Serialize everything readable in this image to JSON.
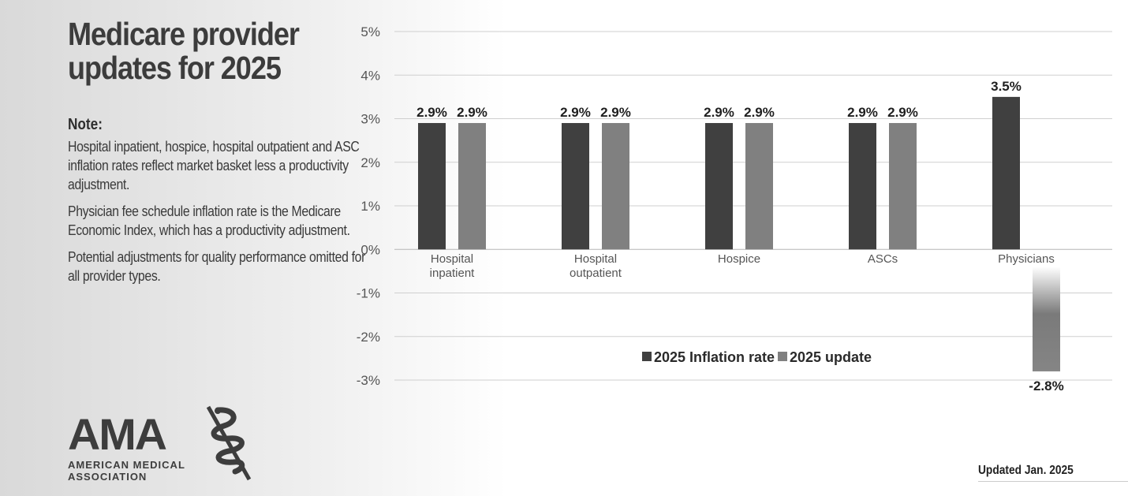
{
  "title": "Medicare provider updates for 2025",
  "note": {
    "heading": "Note:",
    "paragraphs": [
      "Hospital inpatient, hospice, hospital outpatient and ASC inflation rates reflect market basket less a productivity adjustment.",
      "Physician fee schedule inflation rate is the Medicare Economic Index, which has a productivity adjustment.",
      "Potential adjustments for quality performance omitted for all provider types."
    ]
  },
  "logo": {
    "mark": "AMA",
    "line1": "AMERICAN MEDICAL",
    "line2": "ASSOCIATION"
  },
  "updated": "Updated Jan. 2025",
  "chart_data": {
    "type": "bar",
    "title": "",
    "xlabel": "",
    "ylabel": "",
    "ylim": [
      -3,
      5
    ],
    "yticks": [
      5,
      4,
      3,
      2,
      1,
      0,
      -1,
      -2,
      -3
    ],
    "ytick_labels": [
      "5%",
      "4%",
      "3%",
      "2%",
      "1%",
      "0%",
      "-1%",
      "-2%",
      "-3%"
    ],
    "grid": true,
    "legend_position": "bottom-center",
    "categories": [
      [
        "Hospital",
        "inpatient"
      ],
      [
        "Hospital",
        "outpatient"
      ],
      [
        "Hospice"
      ],
      [
        "ASCs"
      ],
      [
        "Physicians"
      ]
    ],
    "series": [
      {
        "name": "2025 Inflation rate",
        "color": "#404040",
        "values": [
          2.9,
          2.9,
          2.9,
          2.9,
          3.5
        ],
        "labels": [
          "2.9%",
          "2.9%",
          "2.9%",
          "2.9%",
          "3.5%"
        ]
      },
      {
        "name": "2025 update",
        "color": "#808080",
        "values": [
          2.9,
          2.9,
          2.9,
          2.9,
          -2.8
        ],
        "labels": [
          "2.9%",
          "2.9%",
          "2.9%",
          "2.9%",
          "-2.8%"
        ]
      }
    ]
  }
}
